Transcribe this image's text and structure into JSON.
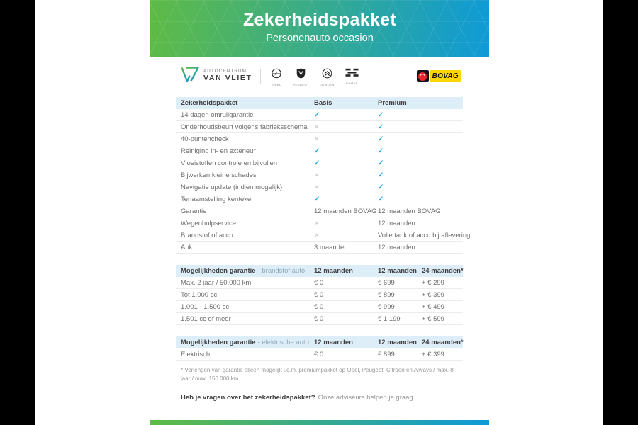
{
  "hero": {
    "title": "Zekerheidspakket",
    "subtitle": "Personenauto occasion"
  },
  "branding": {
    "dealer_top": "AUTOCENTRUM",
    "dealer_bottom": "VAN VLIET",
    "brands": [
      {
        "name": "OPEL"
      },
      {
        "name": "PEUGEOT"
      },
      {
        "name": "CITROËN"
      },
      {
        "name": "AIWAYS"
      }
    ],
    "bovag": "BOVAG"
  },
  "tables": {
    "comparison": {
      "header": {
        "label": "Zekerheidspakket",
        "basis": "Basis",
        "premium": "Premium"
      },
      "rows": [
        {
          "label": "14 dagen omruilgarantie",
          "basis": "check",
          "premium": "check"
        },
        {
          "label": "Onderhoudsbeurt volgens fabrieksschema",
          "basis": "cross",
          "premium": "check"
        },
        {
          "label": "40-puntencheck",
          "basis": "cross",
          "premium": "check"
        },
        {
          "label": "Reiniging in- en exterieur",
          "basis": "check",
          "premium": "check"
        },
        {
          "label": "Vloeistoffen controle en bijvullen",
          "basis": "check",
          "premium": "check"
        },
        {
          "label": "Bijwerken kleine schades",
          "basis": "cross",
          "premium": "check"
        },
        {
          "label": "Navigatie update (indien mogelijk)",
          "basis": "cross",
          "premium": "check"
        },
        {
          "label": "Tenaamstelling kenteken",
          "basis": "check",
          "premium": "check"
        },
        {
          "label": "Garantie",
          "basis": "12 maanden BOVAG",
          "premium": "12 maanden BOVAG"
        },
        {
          "label": "Wegenhulpservice",
          "basis": "cross",
          "premium": "12 maanden"
        },
        {
          "label": "Brandstof of accu",
          "basis": "cross",
          "premium": "Volle tank of accu bij aflevering"
        },
        {
          "label": "Apk",
          "basis": "3 maanden",
          "premium": "12 maanden"
        }
      ]
    },
    "fuel": {
      "header": {
        "title": "Mogelijkheden garantie",
        "qualifier": "- brandstof auto",
        "col1": "12 maanden",
        "col2": "12 maanden",
        "col3": "24 maanden*"
      },
      "rows": [
        {
          "label": "Max. 2 jaar / 50.000 km",
          "col1": "€ 0",
          "col2": "€ 699",
          "col3": "+ € 299"
        },
        {
          "label": "Tot 1.000 cc",
          "col1": "€ 0",
          "col2": "€ 899",
          "col3": "+ € 399"
        },
        {
          "label": "1.001 - 1.500 cc",
          "col1": "€ 0",
          "col2": "€ 999",
          "col3": "+ € 499"
        },
        {
          "label": "1.501 cc of meer",
          "col1": "€ 0",
          "col2": "€ 1.199",
          "col3": "+ € 599"
        }
      ]
    },
    "electric": {
      "header": {
        "title": "Mogelijkheden garantie",
        "qualifier": "- elektrische auto",
        "col1": "12 maanden",
        "col2": "12 maanden",
        "col3": "24 maanden*"
      },
      "rows": [
        {
          "label": "Elektrisch",
          "col1": "€ 0",
          "col2": "€ 899",
          "col3": "+ € 399"
        }
      ]
    }
  },
  "footnote": "* Verlengen van garantie alleen mogelijk i.c.m. premiumpakket op Opel, Peugeot, Citroën en Aiways / max. 8 jaar / max. 150.000 km.",
  "footer": {
    "bold": "Heb je vragen over het zekerheidspakket?",
    "rest": "Onze adviseurs helpen je graag."
  },
  "colors": {
    "green": "#5cb947",
    "blue": "#0f9bd7",
    "check": "#29abe2",
    "cross": "#c8cacc",
    "table_header_bg": "#ddeef8",
    "bovag_yellow": "#fdd604",
    "bovag_red": "#e8262d"
  }
}
